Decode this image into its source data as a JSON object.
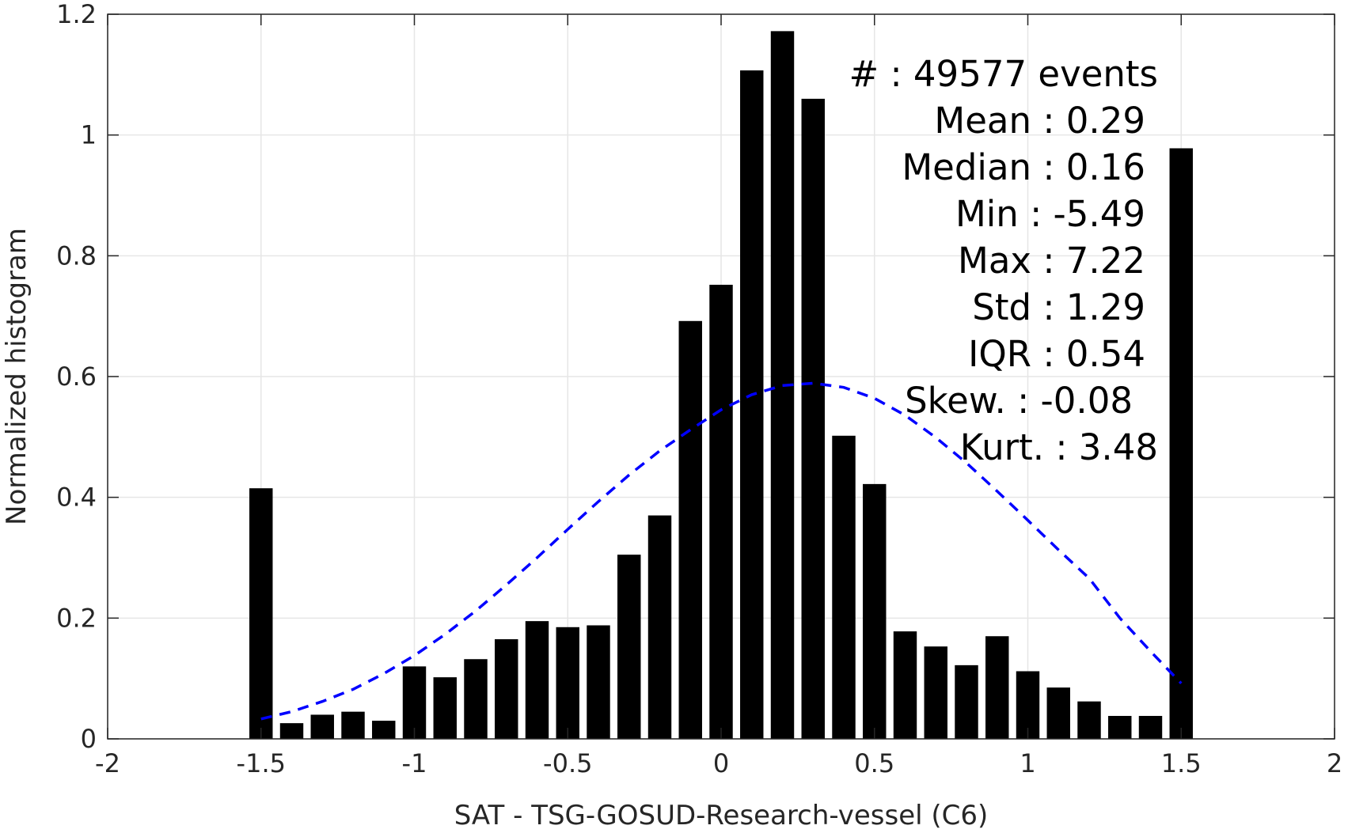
{
  "chart_data": {
    "type": "bar",
    "xlabel": "SAT - TSG-GOSUD-Research-vessel (C6)",
    "ylabel": "Normalized histogram",
    "xlim": [
      -2,
      2
    ],
    "ylim": [
      0,
      1.2
    ],
    "xticks": [
      -2,
      -1.5,
      -1,
      -0.5,
      0,
      0.5,
      1,
      1.5,
      2
    ],
    "xtick_labels": [
      "-2",
      "-1.5",
      "-1",
      "-0.5",
      "0",
      "0.5",
      "1",
      "1.5",
      "2"
    ],
    "yticks": [
      0,
      0.2,
      0.4,
      0.6,
      0.8,
      1,
      1.2
    ],
    "ytick_labels": [
      "0",
      "0.2",
      "0.4",
      "0.6",
      "0.8",
      "1",
      "1.2"
    ],
    "grid": true,
    "bar_color": "#000000",
    "bars": {
      "x": [
        -1.5,
        -1.4,
        -1.3,
        -1.2,
        -1.1,
        -1.0,
        -0.9,
        -0.8,
        -0.7,
        -0.6,
        -0.5,
        -0.4,
        -0.3,
        -0.2,
        -0.1,
        0.0,
        0.1,
        0.2,
        0.3,
        0.4,
        0.5,
        0.6,
        0.7,
        0.8,
        0.9,
        1.0,
        1.1,
        1.2,
        1.3,
        1.4,
        1.5
      ],
      "values": [
        0.415,
        0.026,
        0.04,
        0.045,
        0.03,
        0.12,
        0.102,
        0.132,
        0.165,
        0.195,
        0.185,
        0.188,
        0.305,
        0.37,
        0.692,
        0.752,
        1.107,
        1.172,
        1.06,
        0.502,
        0.422,
        0.178,
        0.153,
        0.122,
        0.17,
        0.112,
        0.085,
        0.062,
        0.038,
        0.038,
        0.978
      ]
    },
    "fit_curve": {
      "style": "dashed",
      "color": "#0000ff",
      "x": [
        -1.5,
        -1.4,
        -1.3,
        -1.2,
        -1.1,
        -1.0,
        -0.9,
        -0.8,
        -0.7,
        -0.6,
        -0.5,
        -0.4,
        -0.3,
        -0.2,
        -0.1,
        0.0,
        0.1,
        0.2,
        0.3,
        0.4,
        0.5,
        0.6,
        0.7,
        0.8,
        0.9,
        1.0,
        1.1,
        1.2,
        1.3,
        1.4,
        1.5
      ],
      "y": [
        0.033,
        0.045,
        0.062,
        0.082,
        0.108,
        0.138,
        0.173,
        0.212,
        0.255,
        0.3,
        0.347,
        0.393,
        0.437,
        0.477,
        0.512,
        0.545,
        0.57,
        0.585,
        0.589,
        0.582,
        0.564,
        0.536,
        0.499,
        0.457,
        0.41,
        0.362,
        0.313,
        0.266,
        0.2,
        0.145,
        0.092
      ]
    },
    "annotation_lines": [
      "#  : 49577 events",
      "Mean : 0.29",
      "Median : 0.16",
      "Min : -5.49",
      "Max : 7.22",
      "Std : 1.29",
      "IQR : 0.54",
      "Skew. : -0.08",
      "Kurt. : 3.48"
    ]
  }
}
